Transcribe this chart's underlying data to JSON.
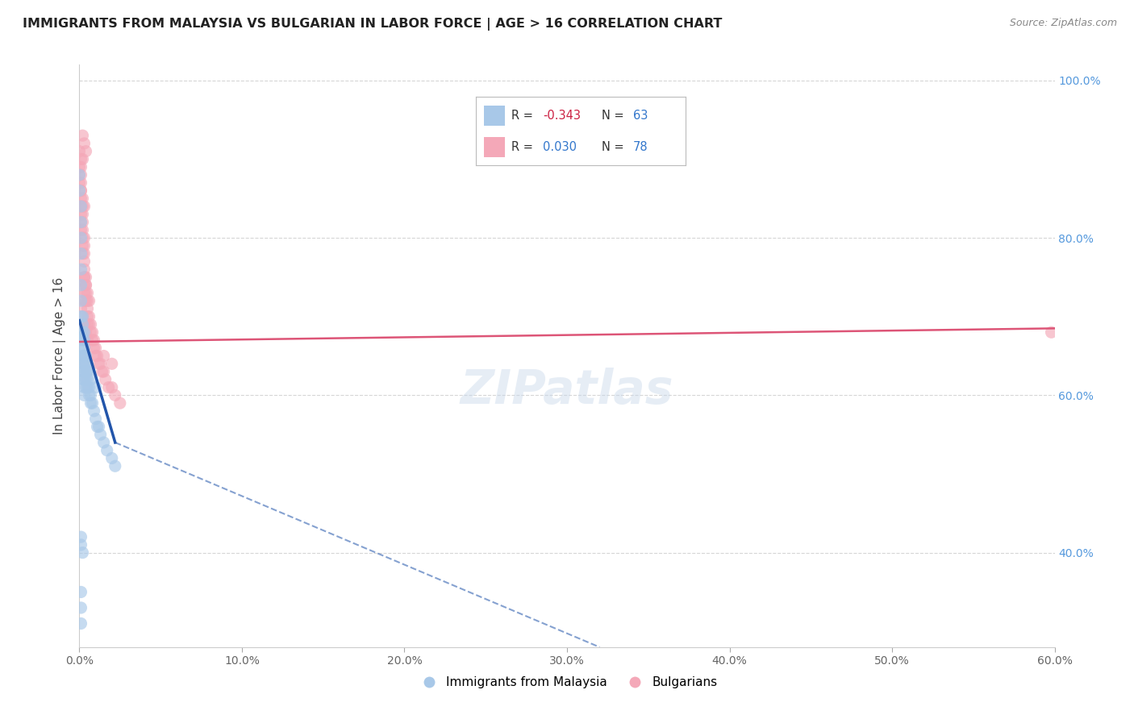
{
  "title": "IMMIGRANTS FROM MALAYSIA VS BULGARIAN IN LABOR FORCE | AGE > 16 CORRELATION CHART",
  "source": "Source: ZipAtlas.com",
  "ylabel": "In Labor Force | Age > 16",
  "xlim": [
    0.0,
    0.6
  ],
  "ylim": [
    0.28,
    1.02
  ],
  "xticks": [
    0.0,
    0.1,
    0.2,
    0.3,
    0.4,
    0.5,
    0.6
  ],
  "xticklabels": [
    "0.0%",
    "10.0%",
    "20.0%",
    "30.0%",
    "40.0%",
    "50.0%",
    "60.0%"
  ],
  "right_yticks": [
    0.4,
    0.6,
    0.8,
    1.0
  ],
  "right_yticklabels": [
    "40.0%",
    "60.0%",
    "80.0%",
    "100.0%"
  ],
  "malaysia_R": -0.343,
  "malaysia_N": 63,
  "bulgarian_R": 0.03,
  "bulgarian_N": 78,
  "malaysia_color": "#a8c8e8",
  "bulgarian_color": "#f4a8b8",
  "malaysia_trend_color": "#2255aa",
  "bulgarian_trend_color": "#dd5577",
  "legend_labels": [
    "Immigrants from Malaysia",
    "Bulgarians"
  ],
  "malaysia_x": [
    0.0,
    0.0,
    0.001,
    0.001,
    0.001,
    0.001,
    0.001,
    0.001,
    0.001,
    0.001,
    0.002,
    0.002,
    0.002,
    0.002,
    0.002,
    0.002,
    0.002,
    0.002,
    0.002,
    0.003,
    0.003,
    0.003,
    0.003,
    0.003,
    0.003,
    0.003,
    0.003,
    0.003,
    0.004,
    0.004,
    0.004,
    0.004,
    0.004,
    0.005,
    0.005,
    0.005,
    0.006,
    0.006,
    0.007,
    0.007,
    0.008,
    0.009,
    0.01,
    0.011,
    0.012,
    0.013,
    0.015,
    0.017,
    0.02,
    0.022,
    0.001,
    0.001,
    0.002,
    0.003,
    0.004,
    0.005,
    0.007,
    0.01,
    0.001,
    0.001,
    0.001,
    0.0,
    0.0
  ],
  "malaysia_y": [
    0.88,
    0.86,
    0.84,
    0.82,
    0.8,
    0.78,
    0.76,
    0.74,
    0.72,
    0.7,
    0.7,
    0.69,
    0.68,
    0.67,
    0.66,
    0.65,
    0.64,
    0.63,
    0.62,
    0.68,
    0.67,
    0.66,
    0.65,
    0.64,
    0.63,
    0.62,
    0.61,
    0.6,
    0.65,
    0.64,
    0.63,
    0.62,
    0.61,
    0.63,
    0.62,
    0.61,
    0.61,
    0.6,
    0.6,
    0.59,
    0.59,
    0.58,
    0.57,
    0.56,
    0.56,
    0.55,
    0.54,
    0.53,
    0.52,
    0.51,
    0.42,
    0.41,
    0.4,
    0.65,
    0.64,
    0.63,
    0.62,
    0.61,
    0.35,
    0.33,
    0.31,
    0.68,
    0.67
  ],
  "bulgarian_x": [
    0.0,
    0.0,
    0.001,
    0.001,
    0.001,
    0.001,
    0.001,
    0.001,
    0.001,
    0.001,
    0.002,
    0.002,
    0.002,
    0.002,
    0.002,
    0.002,
    0.002,
    0.003,
    0.003,
    0.003,
    0.003,
    0.003,
    0.003,
    0.003,
    0.003,
    0.003,
    0.004,
    0.004,
    0.004,
    0.004,
    0.005,
    0.005,
    0.005,
    0.005,
    0.006,
    0.006,
    0.007,
    0.007,
    0.008,
    0.008,
    0.009,
    0.009,
    0.01,
    0.011,
    0.012,
    0.013,
    0.014,
    0.015,
    0.016,
    0.018,
    0.02,
    0.022,
    0.025,
    0.002,
    0.003,
    0.004,
    0.002,
    0.001,
    0.001,
    0.0,
    0.0,
    0.001,
    0.002,
    0.003,
    0.003,
    0.004,
    0.005,
    0.006,
    0.001,
    0.002,
    0.003,
    0.004,
    0.005,
    0.01,
    0.015,
    0.02,
    0.598
  ],
  "bulgarian_y": [
    0.91,
    0.89,
    0.88,
    0.87,
    0.86,
    0.85,
    0.84,
    0.83,
    0.82,
    0.81,
    0.84,
    0.83,
    0.82,
    0.81,
    0.8,
    0.79,
    0.78,
    0.8,
    0.79,
    0.78,
    0.77,
    0.76,
    0.75,
    0.74,
    0.73,
    0.72,
    0.75,
    0.74,
    0.73,
    0.72,
    0.72,
    0.71,
    0.7,
    0.69,
    0.7,
    0.69,
    0.69,
    0.68,
    0.68,
    0.67,
    0.67,
    0.66,
    0.65,
    0.65,
    0.64,
    0.64,
    0.63,
    0.63,
    0.62,
    0.61,
    0.61,
    0.6,
    0.59,
    0.93,
    0.92,
    0.91,
    0.9,
    0.9,
    0.89,
    0.88,
    0.87,
    0.86,
    0.85,
    0.84,
    0.75,
    0.74,
    0.73,
    0.72,
    0.71,
    0.7,
    0.69,
    0.68,
    0.67,
    0.66,
    0.65,
    0.64,
    0.68
  ],
  "malaysia_trend_x0": 0.0,
  "malaysia_trend_y0": 0.695,
  "malaysia_trend_x1": 0.022,
  "malaysia_trend_y1": 0.54,
  "malaysia_trend_xd0": 0.022,
  "malaysia_trend_yd0": 0.54,
  "malaysia_trend_xd1": 0.32,
  "malaysia_trend_yd1": 0.28,
  "bulgarian_trend_x0": 0.0,
  "bulgarian_trend_y0": 0.668,
  "bulgarian_trend_x1": 0.6,
  "bulgarian_trend_y1": 0.685
}
